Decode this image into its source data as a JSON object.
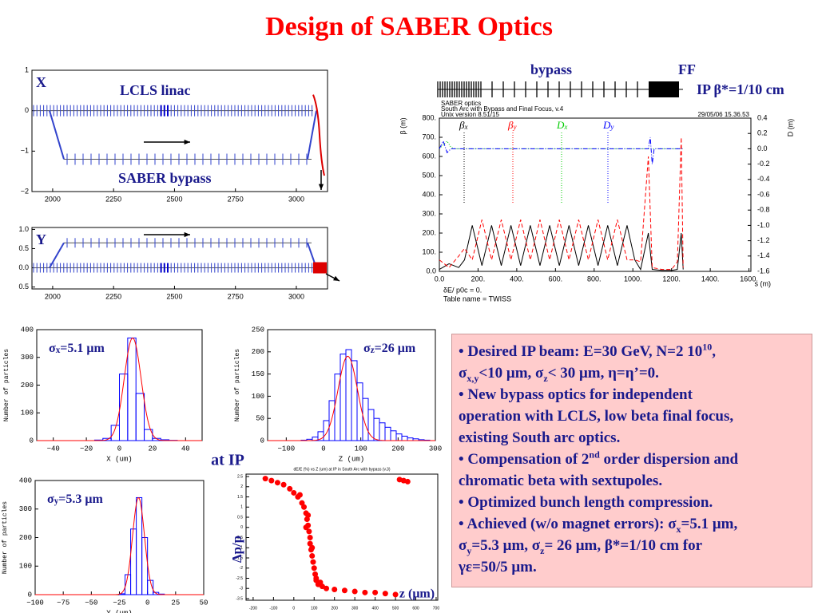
{
  "title": "Design of SABER Optics",
  "at_ip": "at IP",
  "summary": [
    [
      {
        "text": "• Desired IP beam: E=30 GeV, N=2 10"
      },
      {
        "text": "10",
        "pos": "sup"
      },
      {
        "text": ","
      }
    ],
    [
      {
        "text": "σ"
      },
      {
        "text": "x,y",
        "pos": "sub"
      },
      {
        "text": "<10 μm, σ"
      },
      {
        "text": "z",
        "pos": "sub"
      },
      {
        "text": "< 30 μm, η=η’=0."
      }
    ],
    [
      {
        "text": "• New bypass optics for independent"
      }
    ],
    [
      {
        "text": "operation with LCLS, low beta final focus,"
      }
    ],
    [
      {
        "text": "existing South arc optics."
      }
    ],
    [
      {
        "text": "• Compensation of 2"
      },
      {
        "text": "nd",
        "pos": "sup"
      },
      {
        "text": " order dispersion and"
      }
    ],
    [
      {
        "text": "chromatic beta with sextupoles."
      }
    ],
    [
      {
        "text": "• Optimized bunch length compression."
      }
    ],
    [
      {
        "text": "• Achieved (w/o magnet errors): σ"
      },
      {
        "text": "x",
        "pos": "sub"
      },
      {
        "text": "=5.1 μm,"
      }
    ],
    [
      {
        "text": "σ"
      },
      {
        "text": "y",
        "pos": "sub"
      },
      {
        "text": "=5.3 μm, σ"
      },
      {
        "text": "z",
        "pos": "sub"
      },
      {
        "text": "= 26 μm, β*=1/10 cm for"
      }
    ],
    [
      {
        "text": "γε=50/5 μm."
      }
    ]
  ],
  "chart_data": [
    {
      "type": "lattice",
      "label": "X",
      "annotations": [
        "LCLS linac",
        "SABER bypass"
      ],
      "xlim": [
        1915,
        3128
      ],
      "ylim": [
        -2,
        1
      ],
      "xticks": [
        2000,
        2250,
        2500,
        2750,
        3000
      ],
      "yticks": [
        {
          "value": -2,
          "label": "−2"
        },
        {
          "value": -1,
          "label": "−1"
        },
        0,
        1
      ]
    },
    {
      "type": "lattice",
      "label": "Y",
      "xlim": [
        1915,
        3128
      ],
      "ylim": [
        -0.55,
        1.05
      ],
      "xticks": [
        2000,
        2250,
        2500,
        2750,
        3000
      ],
      "yticks": [
        {
          "value": -0.5,
          "label": "0.5"
        },
        {
          "value": 0,
          "label": "0.0"
        },
        {
          "value": 0.5,
          "label": "0.5"
        },
        {
          "value": 1,
          "label": "1.0"
        }
      ]
    },
    {
      "type": "twiss",
      "header": [
        "SABER optics",
        "South Arc with Bypass and Final Focus, v.4",
        "Unix version 8.51/15"
      ],
      "date": "29/05/06  15.36.53",
      "ylabel": "β (m)",
      "y2label": "D (m)",
      "xlabel": "s (m)",
      "footer": [
        "δE/ p0c =  0.",
        "Table name = TWISS"
      ],
      "labels": [
        "bypass",
        "FF",
        "IP β*=1/10 cm"
      ],
      "xlim": [
        0,
        1610
      ],
      "ylim": [
        0,
        800
      ],
      "y2lim": [
        -1.6,
        0.4
      ],
      "xticks": [
        {
          "value": 0,
          "label": "0.0"
        },
        {
          "value": 200,
          "label": "200."
        },
        {
          "value": 400,
          "label": "400."
        },
        {
          "value": 600,
          "label": "600."
        },
        {
          "value": 800,
          "label": "800."
        },
        {
          "value": 1000,
          "label": "1000."
        },
        {
          "value": 1200,
          "label": "1200."
        },
        {
          "value": 1400,
          "label": "1400."
        },
        {
          "value": 1600,
          "label": "1600."
        }
      ],
      "yticks": [
        {
          "value": 0,
          "label": "0.0"
        },
        {
          "value": 100,
          "label": "100."
        },
        {
          "value": 200,
          "label": "200."
        },
        {
          "value": 300,
          "label": "300."
        },
        {
          "value": 400,
          "label": "400."
        },
        {
          "value": 500,
          "label": "500."
        },
        {
          "value": 600,
          "label": "600."
        },
        {
          "value": 700,
          "label": "700."
        },
        {
          "value": 800,
          "label": "800."
        }
      ],
      "y2ticks": [
        {
          "value": 0.4,
          "label": "0.4"
        },
        {
          "value": 0.2,
          "label": "0.2"
        },
        {
          "value": 0,
          "label": "0.0"
        },
        -0.2,
        -0.4,
        -0.6,
        -0.8,
        {
          "value": -1,
          "label": "-1.0"
        },
        -1.2,
        -1.4,
        -1.6
      ],
      "series": [
        {
          "name": [
            {
              "text": "β"
            },
            {
              "text": "x",
              "pos": "sub"
            }
          ],
          "color": "#000000",
          "dash": "none",
          "x": [
            0,
            50,
            100,
            130,
            170,
            220,
            270,
            320,
            370,
            420,
            470,
            520,
            570,
            620,
            670,
            720,
            770,
            820,
            870,
            920,
            970,
            1010,
            1040,
            1080,
            1100,
            1150,
            1200,
            1230,
            1250,
            1260
          ],
          "values": [
            10,
            40,
            20,
            60,
            240,
            30,
            240,
            30,
            240,
            30,
            240,
            30,
            240,
            30,
            240,
            30,
            240,
            30,
            240,
            30,
            240,
            60,
            10,
            200,
            10,
            5,
            5,
            10,
            200,
            10
          ]
        },
        {
          "name": [
            {
              "text": "β"
            },
            {
              "text": "y",
              "pos": "sub"
            }
          ],
          "color": "#ff0000",
          "dash": "5,3",
          "x": [
            0,
            50,
            100,
            130,
            170,
            220,
            270,
            320,
            370,
            420,
            470,
            520,
            570,
            620,
            670,
            720,
            770,
            820,
            870,
            920,
            970,
            1010,
            1040,
            1080,
            1100,
            1150,
            1200,
            1230,
            1250,
            1260
          ],
          "values": [
            60,
            20,
            80,
            120,
            60,
            270,
            60,
            270,
            60,
            270,
            60,
            270,
            60,
            270,
            60,
            270,
            60,
            270,
            60,
            270,
            60,
            60,
            50,
            600,
            20,
            10,
            10,
            50,
            700,
            20
          ]
        },
        {
          "name": [
            {
              "text": "D"
            },
            {
              "text": "x",
              "pos": "sub"
            }
          ],
          "color": "#00cc00",
          "dash": "1,2",
          "axis": "y2",
          "x": [
            0,
            20,
            40,
            60,
            80,
            100,
            1260
          ],
          "values": [
            0,
            0.05,
            0.1,
            0.02,
            0,
            0,
            0
          ]
        },
        {
          "name": [
            {
              "text": "D"
            },
            {
              "text": "y",
              "pos": "sub"
            }
          ],
          "color": "#0000ff",
          "dash": "6,2,1,2",
          "axis": "y2",
          "x": [
            0,
            20,
            40,
            60,
            80,
            1080,
            1090,
            1100,
            1110,
            1260
          ],
          "values": [
            0,
            0.1,
            -0.05,
            0,
            0,
            0,
            0.15,
            -0.2,
            0,
            0
          ]
        }
      ]
    },
    {
      "type": "histogram",
      "annotation": [
        {
          "text": "σ"
        },
        {
          "text": "x",
          "pos": "sub"
        },
        {
          "text": "=5.1 μm"
        }
      ],
      "ylabel": "Number of particles",
      "xlabel": "X (um)",
      "color": "#0000ff",
      "fit": {
        "mean": 8,
        "sigma": 5.1,
        "peak": 370,
        "color": "#ff0000"
      },
      "xlim": [
        -50,
        50
      ],
      "ylim": [
        0,
        400
      ],
      "xticks": [
        {
          "value": -40,
          "label": "−40"
        },
        {
          "value": -20,
          "label": "−20"
        },
        0,
        20,
        40
      ],
      "yticks": [
        0,
        100,
        200,
        300,
        400
      ],
      "bins": [
        -50,
        -45,
        -40,
        -35,
        -30,
        -25,
        -20,
        -15,
        -10,
        -5,
        0,
        5,
        10,
        15,
        20,
        25,
        30,
        35,
        40,
        45,
        50
      ],
      "counts": [
        0,
        0,
        0,
        0,
        0,
        0,
        0,
        2,
        8,
        55,
        240,
        370,
        170,
        40,
        8,
        3,
        1,
        0,
        0,
        0
      ]
    },
    {
      "type": "histogram",
      "annotation": [
        {
          "text": "σ"
        },
        {
          "text": "z",
          "pos": "sub"
        },
        {
          "text": "=26 μm"
        }
      ],
      "ylabel": "Number of particles",
      "xlabel": "Z (um)",
      "color": "#0000ff",
      "fit": {
        "mean": 65,
        "sigma": 26,
        "peak": 190,
        "color": "#ff0000"
      },
      "xlim": [
        -150,
        300
      ],
      "ylim": [
        0,
        250
      ],
      "xticks": [
        {
          "value": -100,
          "label": "−100"
        },
        0,
        100,
        200,
        300
      ],
      "yticks": [
        0,
        50,
        100,
        150,
        200,
        250
      ],
      "bins": [
        -150,
        -135,
        -120,
        -105,
        -90,
        -75,
        -60,
        -45,
        -30,
        -15,
        0,
        15,
        30,
        45,
        60,
        75,
        90,
        105,
        120,
        135,
        150,
        165,
        180,
        195,
        210,
        225,
        240,
        255,
        270,
        285,
        300
      ],
      "counts": [
        0,
        0,
        0,
        0,
        0,
        0,
        1,
        3,
        8,
        20,
        45,
        90,
        150,
        195,
        205,
        180,
        130,
        95,
        70,
        50,
        40,
        30,
        22,
        15,
        10,
        6,
        4,
        2,
        1,
        0
      ]
    },
    {
      "type": "histogram",
      "annotation": [
        {
          "text": "σ"
        },
        {
          "text": "y",
          "pos": "sub"
        },
        {
          "text": "=5.3 μm"
        }
      ],
      "ylabel": "Number of particles",
      "xlabel": "Y (um)",
      "color": "#0000ff",
      "fit": {
        "mean": -8,
        "sigma": 5.3,
        "peak": 340,
        "color": "#ff0000"
      },
      "xlim": [
        -100,
        50
      ],
      "ylim": [
        0,
        400
      ],
      "xticks": [
        {
          "value": -100,
          "label": "−100"
        },
        {
          "value": -75,
          "label": "−75"
        },
        {
          "value": -50,
          "label": "−50"
        },
        {
          "value": -25,
          "label": "−25"
        },
        0,
        25,
        50
      ],
      "yticks": [
        0,
        100,
        200,
        300,
        400
      ],
      "bins": [
        -100,
        -95,
        -90,
        -85,
        -80,
        -75,
        -70,
        -65,
        -60,
        -55,
        -50,
        -45,
        -40,
        -35,
        -30,
        -25,
        -20,
        -15,
        -10,
        -5,
        0,
        5,
        10,
        15,
        20,
        25,
        30,
        35,
        40,
        45,
        50
      ],
      "counts": [
        0,
        0,
        0,
        0,
        0,
        0,
        0,
        0,
        0,
        0,
        0,
        0,
        0,
        0,
        0,
        3,
        70,
        230,
        340,
        200,
        50,
        8,
        2,
        0,
        0,
        0,
        0,
        0,
        0,
        0
      ]
    },
    {
      "type": "scatter",
      "title": "dE/E (%) vs Z (um) at IP in South Arc with bypass (v.3)",
      "ylabel": "Δp/p",
      "xlabel": "z (μm)",
      "color": "#ff0000",
      "xlim": [
        -235,
        708
      ],
      "ylim": [
        -3.58,
        2.62
      ],
      "xticks": [
        -200,
        -100,
        0,
        100,
        200,
        300,
        400,
        500,
        600,
        700
      ],
      "yticks": [
        2.5,
        2,
        1.5,
        1,
        0.5,
        0,
        -0.5,
        -1,
        -1.5,
        -2,
        -2.5,
        -3,
        -3.5
      ],
      "x": [
        -140,
        -110,
        -80,
        -50,
        -20,
        0,
        20,
        40,
        50,
        60,
        65,
        70,
        75,
        80,
        80,
        85,
        90,
        95,
        100,
        105,
        110,
        120,
        140,
        160,
        200,
        250,
        300,
        350,
        400,
        450,
        500,
        520,
        540,
        560,
        60,
        90,
        30,
        110,
        130,
        70
      ],
      "y": [
        2.4,
        2.3,
        2.2,
        2.1,
        1.9,
        1.7,
        1.5,
        1.2,
        1.0,
        0.7,
        0.4,
        0.1,
        -0.2,
        -0.5,
        -0.8,
        -1.1,
        -1.4,
        -1.7,
        -2.0,
        -2.3,
        -2.6,
        -2.8,
        -2.9,
        -3.0,
        -3.05,
        -3.1,
        -3.15,
        -3.2,
        -3.2,
        -3.25,
        -3.3,
        2.35,
        2.3,
        2.25,
        0.0,
        -1.0,
        1.6,
        -2.5,
        -2.7,
        0.6
      ]
    }
  ]
}
